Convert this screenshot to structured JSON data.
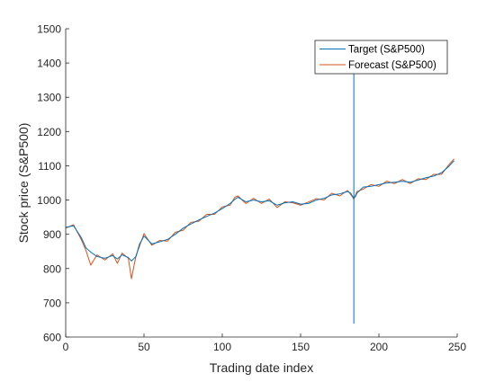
{
  "chart_data": {
    "type": "line",
    "title": "",
    "xlabel": "Trading date index",
    "ylabel": "Stock price (S&P500)",
    "xlim": [
      0,
      250
    ],
    "ylim": [
      600,
      1500
    ],
    "xticks": [
      0,
      50,
      100,
      150,
      200,
      250
    ],
    "yticks": [
      600,
      700,
      800,
      900,
      1000,
      1100,
      1200,
      1300,
      1400,
      1500
    ],
    "xtick_labels": [
      "0",
      "50",
      "100",
      "150",
      "200",
      "250"
    ],
    "ytick_labels": [
      "600",
      "700",
      "800",
      "900",
      "1000",
      "1100",
      "1200",
      "1300",
      "1400",
      "1500"
    ],
    "grid": false,
    "legend_position": "top-right",
    "x": [
      0,
      5,
      10,
      13,
      16,
      20,
      25,
      30,
      33,
      36,
      40,
      42,
      45,
      47,
      50,
      55,
      60,
      65,
      70,
      75,
      80,
      85,
      90,
      95,
      100,
      105,
      108,
      110,
      115,
      120,
      125,
      130,
      135,
      140,
      145,
      150,
      155,
      160,
      165,
      170,
      175,
      180,
      182,
      183,
      184,
      185,
      186,
      190,
      195,
      200,
      205,
      210,
      215,
      220,
      225,
      230,
      235,
      240,
      245,
      248
    ],
    "series": [
      {
        "name": "Target (S&P500)",
        "color": "#0072BD",
        "values": [
          920,
          925,
          890,
          860,
          848,
          835,
          830,
          838,
          828,
          840,
          832,
          822,
          836,
          870,
          895,
          872,
          878,
          885,
          900,
          918,
          930,
          942,
          952,
          962,
          975,
          990,
          1002,
          1008,
          995,
          1000,
          995,
          998,
          985,
          992,
          995,
          988,
          990,
          1000,
          1005,
          1015,
          1018,
          1025,
          1020,
          1012,
          1006,
          1010,
          1020,
          1038,
          1040,
          1045,
          1050,
          1052,
          1055,
          1052,
          1058,
          1065,
          1070,
          1080,
          1100,
          1115
        ],
        "spike": {
          "x": 184,
          "y_top": 1380,
          "y_bottom": 640
        }
      },
      {
        "name": "Forecast (S&P500)",
        "color": "#D95319",
        "values": [
          918,
          928,
          884,
          852,
          810,
          840,
          825,
          843,
          815,
          845,
          830,
          770,
          840,
          863,
          902,
          868,
          882,
          880,
          906,
          912,
          935,
          938,
          958,
          958,
          980,
          985,
          1008,
          1012,
          990,
          1005,
          990,
          1003,
          978,
          995,
          992,
          985,
          994,
          1004,
          1000,
          1020,
          1012,
          1028,
          1016,
          1010,
          1002,
          1014,
          1025,
          1032,
          1045,
          1040,
          1055,
          1048,
          1060,
          1048,
          1062,
          1060,
          1075,
          1075,
          1105,
          1120
        ]
      }
    ]
  }
}
